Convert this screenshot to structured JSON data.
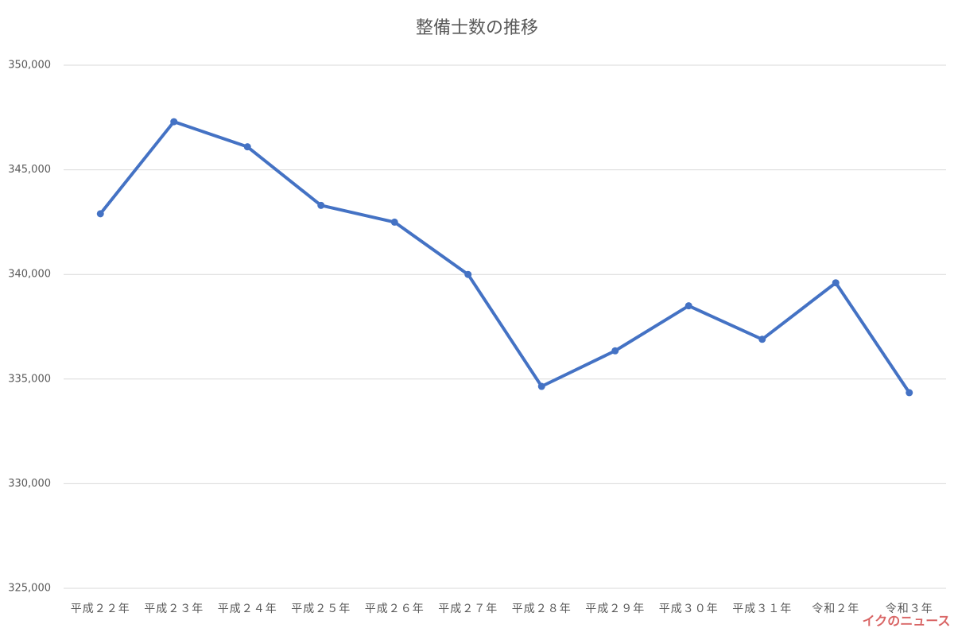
{
  "chart_data": {
    "type": "line",
    "title": "整備士数の推移",
    "categories": [
      "平成２２年",
      "平成２３年",
      "平成２４年",
      "平成２５年",
      "平成２６年",
      "平成２７年",
      "平成２８年",
      "平成２９年",
      "平成３０年",
      "平成３１年",
      "令和２年",
      "令和３年"
    ],
    "series": [
      {
        "name": "整備士数",
        "color": "#4472c4",
        "values": [
          342900,
          347300,
          346100,
          343300,
          342500,
          340000,
          334650,
          336350,
          338500,
          336900,
          339600,
          334350
        ]
      }
    ],
    "ylim": [
      325000,
      350000
    ],
    "yticks": [
      {
        "value": 325000,
        "label": "325,000"
      },
      {
        "value": 330000,
        "label": "330,000"
      },
      {
        "value": 335000,
        "label": "335,000"
      },
      {
        "value": 340000,
        "label": "340,000"
      },
      {
        "value": 345000,
        "label": "345,000"
      },
      {
        "value": 350000,
        "label": "350,000"
      }
    ],
    "grid": true,
    "watermark": "イクのニュース"
  }
}
